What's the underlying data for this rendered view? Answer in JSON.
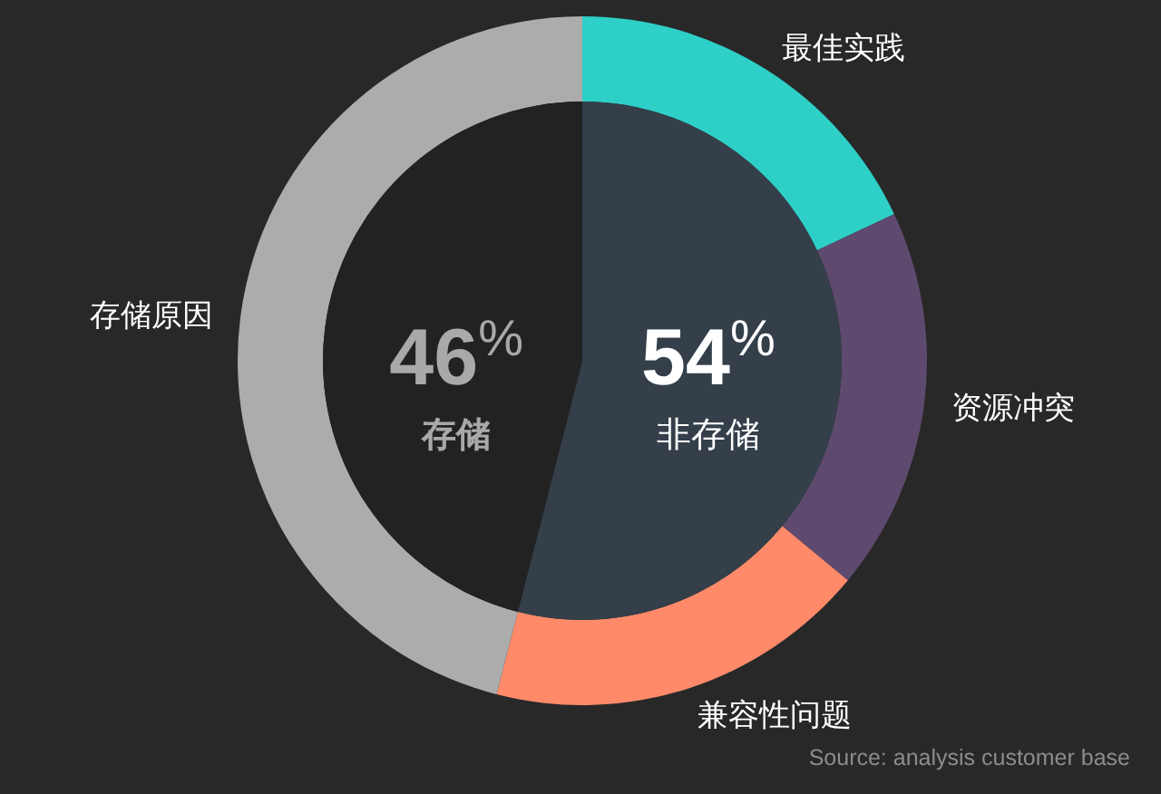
{
  "chart_data": [
    {
      "type": "donut",
      "categories": [
        "最佳实践",
        "资源冲突",
        "兼容性问题",
        "存储原因"
      ],
      "values": [
        18,
        18,
        18,
        46
      ],
      "colors": [
        "#2ecfc7",
        "#5e4a6e",
        "#ff8a6a",
        "#acacac"
      ],
      "legend": false,
      "annotations": [
        "Source: analysis customer base"
      ]
    },
    {
      "type": "pie",
      "categories": [
        "非存储",
        "存储"
      ],
      "values": [
        54,
        46
      ],
      "colors": [
        "#343f4a",
        "#222222"
      ],
      "value_labels": [
        "54%",
        "46%"
      ],
      "legend": false
    }
  ]
}
